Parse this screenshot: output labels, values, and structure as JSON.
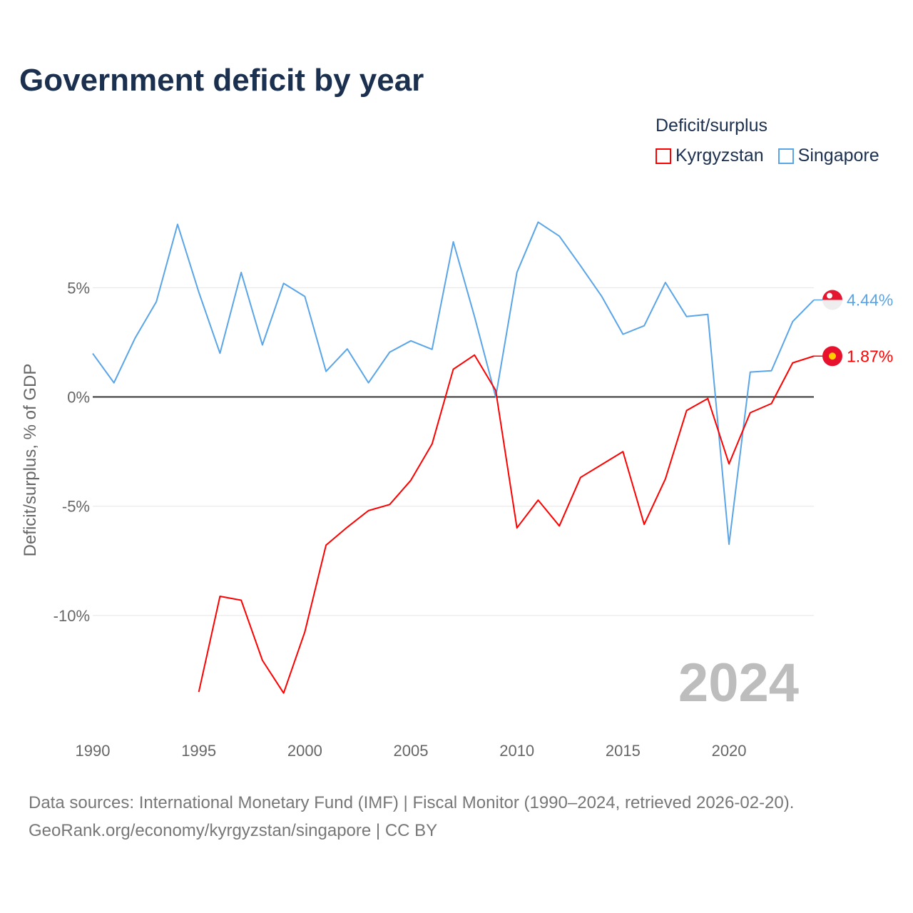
{
  "title": "Government deficit by year",
  "legend": {
    "title": "Deficit/surplus",
    "items": [
      {
        "label": "Kyrgyzstan",
        "color": "#ff0000"
      },
      {
        "label": "Singapore",
        "color": "#5aa5e8"
      }
    ]
  },
  "year_watermark": "2024",
  "footer": {
    "line1": "Data sources: International Monetary Fund (IMF) | Fiscal Monitor (1990–2024, retrieved 2026-02-20).",
    "line2": "GeoRank.org/economy/kyrgyzstan/singapore | CC BY"
  },
  "chart_data": {
    "type": "line",
    "title": "Government deficit by year",
    "ylabel": "Deficit/surplus, % of GDP",
    "xlabel": "",
    "xlim": [
      1990,
      2024
    ],
    "ylim": [
      -14.8,
      8.7
    ],
    "xticks": [
      1990,
      1995,
      2000,
      2005,
      2010,
      2015,
      2020
    ],
    "xtick_labels": [
      "1990",
      "1995",
      "2000",
      "2005",
      "2010",
      "2015",
      "2020"
    ],
    "yticks": [
      5,
      0,
      -5,
      -10
    ],
    "ytick_labels": [
      "5%",
      "0%",
      "-5%",
      "-10%"
    ],
    "grid": true,
    "legend_position": "top-right",
    "series": [
      {
        "name": "Singapore",
        "color": "#5aa5e8",
        "end_label": "4.44%",
        "x": [
          1990,
          1991,
          1992,
          1993,
          1994,
          1995,
          1996,
          1997,
          1998,
          1999,
          2000,
          2001,
          2002,
          2003,
          2004,
          2005,
          2006,
          2007,
          2008,
          2009,
          2010,
          2011,
          2012,
          2013,
          2014,
          2015,
          2016,
          2017,
          2018,
          2019,
          2020,
          2021,
          2022,
          2023,
          2024
        ],
        "values": [
          1.99,
          0.65,
          2.7,
          4.36,
          7.9,
          4.8,
          2.0,
          5.7,
          2.38,
          5.2,
          4.6,
          1.17,
          2.2,
          0.65,
          2.05,
          2.57,
          2.18,
          7.1,
          3.68,
          0.0,
          5.7,
          8.0,
          7.36,
          6.0,
          4.6,
          2.87,
          3.26,
          5.24,
          3.68,
          3.78,
          -6.74,
          1.14,
          1.2,
          3.45,
          4.44
        ]
      },
      {
        "name": "Kyrgyzstan",
        "color": "#ff0000",
        "end_label": "1.87%",
        "x": [
          1995,
          1996,
          1997,
          1998,
          1999,
          2000,
          2001,
          2002,
          2003,
          2004,
          2005,
          2006,
          2007,
          2008,
          2009,
          2010,
          2011,
          2012,
          2013,
          2014,
          2015,
          2016,
          2017,
          2018,
          2019,
          2020,
          2021,
          2022,
          2023,
          2024
        ],
        "values": [
          -13.5,
          -9.12,
          -9.3,
          -12.05,
          -13.55,
          -10.75,
          -6.78,
          -5.96,
          -5.2,
          -4.92,
          -3.81,
          -2.15,
          1.27,
          1.92,
          0.3,
          -5.99,
          -4.72,
          -5.9,
          -3.68,
          -3.09,
          -2.5,
          -5.83,
          -3.75,
          -0.62,
          -0.07,
          -3.06,
          -0.72,
          -0.3,
          1.56,
          1.87
        ]
      }
    ]
  }
}
